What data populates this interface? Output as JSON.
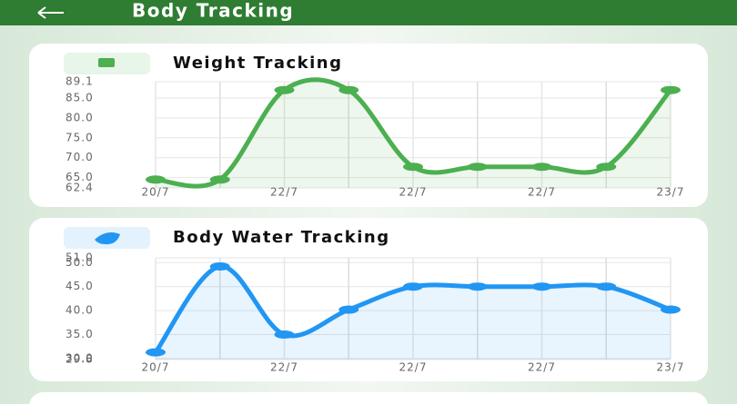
{
  "header": {
    "title": "Body Tracking"
  },
  "chart_data": [
    {
      "type": "line",
      "title": "Weight Tracking",
      "categories": [
        "20/7",
        null,
        "22/7",
        null,
        "22/7",
        null,
        "22/7",
        null,
        "23/7"
      ],
      "series": [
        {
          "color": "#4caf50",
          "values": [
            64.5,
            64.5,
            87.0,
            87.0,
            67.7,
            67.7,
            67.7,
            67.7,
            87.0
          ]
        }
      ],
      "ylim": [
        62.4,
        89.1
      ],
      "yticks": [
        62.4,
        {
          "value": 65,
          "label": "65.0"
        },
        {
          "value": 70,
          "label": "70.0"
        },
        {
          "value": 75,
          "label": "75.0"
        },
        {
          "value": 80,
          "label": "80.0"
        },
        {
          "value": 85,
          "label": "85.0"
        },
        89.1
      ],
      "grid": true
    },
    {
      "type": "line",
      "title": "Body Water Tracking",
      "categories": [
        "20/7",
        null,
        "22/7",
        null,
        "22/7",
        null,
        "22/7",
        null,
        "23/7"
      ],
      "series": [
        {
          "color": "#2196f3",
          "values": [
            31.3,
            49.2,
            35.0,
            40.2,
            45.0,
            45.0,
            45.0,
            45.0,
            40.2
          ]
        }
      ],
      "ylim": [
        29.8,
        51.0
      ],
      "yticks": [
        29.8,
        {
          "value": 30,
          "label": "30.0"
        },
        {
          "value": 35,
          "label": "35.0"
        },
        {
          "value": 40,
          "label": "40.0"
        },
        {
          "value": 45,
          "label": "45.0"
        },
        {
          "value": 50,
          "label": "50.0"
        },
        {
          "value": 51,
          "label": "51.0"
        }
      ],
      "grid": true
    }
  ]
}
